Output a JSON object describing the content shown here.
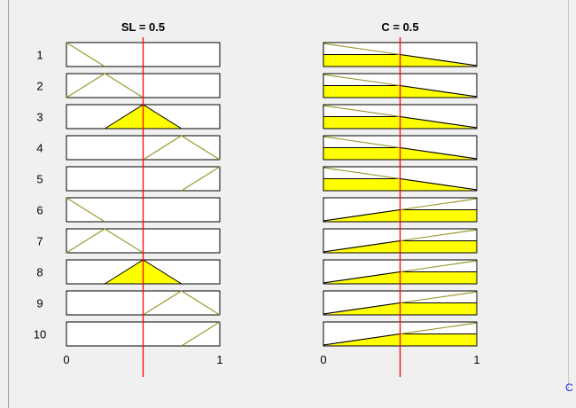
{
  "panels": [
    {
      "title": "SL = 0.5",
      "axis_ticks": [
        "0",
        "1"
      ],
      "input_value": 0.5,
      "range": [
        0,
        1
      ]
    },
    {
      "title": "C = 0.5",
      "axis_ticks": [
        "0",
        "1"
      ],
      "input_value": 0.5,
      "range": [
        0,
        1
      ]
    }
  ],
  "rules": [
    {
      "label": "1",
      "sl": {
        "mf": [
          0,
          0,
          0.25
        ],
        "firing": 0.0
      },
      "c": {
        "shape": "falling"
      }
    },
    {
      "label": "2",
      "sl": {
        "mf": [
          0,
          0.25,
          0.5
        ],
        "firing": 0.0
      },
      "c": {
        "shape": "falling"
      }
    },
    {
      "label": "3",
      "sl": {
        "mf": [
          0.25,
          0.5,
          0.75
        ],
        "firing": 1.0
      },
      "c": {
        "shape": "falling"
      }
    },
    {
      "label": "4",
      "sl": {
        "mf": [
          0.5,
          0.75,
          1.0
        ],
        "firing": 0.0
      },
      "c": {
        "shape": "falling"
      }
    },
    {
      "label": "5",
      "sl": {
        "mf": [
          0.75,
          1.0,
          1.0
        ],
        "firing": 0.0
      },
      "c": {
        "shape": "falling"
      }
    },
    {
      "label": "6",
      "sl": {
        "mf": [
          0,
          0,
          0.25
        ],
        "firing": 0.0
      },
      "c": {
        "shape": "rising"
      }
    },
    {
      "label": "7",
      "sl": {
        "mf": [
          0,
          0.25,
          0.5
        ],
        "firing": 0.0
      },
      "c": {
        "shape": "rising"
      }
    },
    {
      "label": "8",
      "sl": {
        "mf": [
          0.25,
          0.5,
          0.75
        ],
        "firing": 1.0
      },
      "c": {
        "shape": "rising"
      }
    },
    {
      "label": "9",
      "sl": {
        "mf": [
          0.5,
          0.75,
          1.0
        ],
        "firing": 0.0
      },
      "c": {
        "shape": "rising"
      }
    },
    {
      "label": "10",
      "sl": {
        "mf": [
          0.75,
          1.0,
          1.0
        ],
        "firing": 0.0
      },
      "c": {
        "shape": "rising"
      }
    }
  ],
  "colors": {
    "background": "#f0f0f0",
    "plot_box": "#ffffff",
    "mf_line": "#9a9a30",
    "fill": "#ffff00",
    "indicator": "#ff0000",
    "text": "#000000"
  },
  "footer": {
    "cutoff_text": "C"
  }
}
